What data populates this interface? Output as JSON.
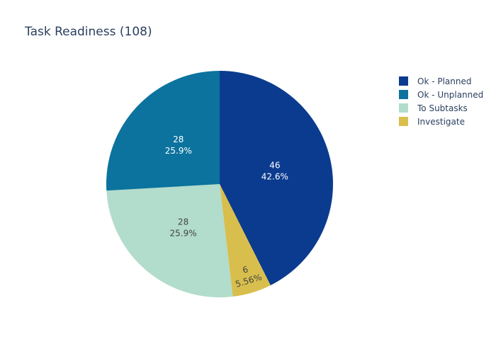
{
  "chart_data": {
    "type": "pie",
    "title": "Task Readiness (108)",
    "total": 108,
    "slices": [
      {
        "label": "Ok - Planned",
        "value": 46,
        "percent": "42.6%",
        "color": "#0b3b8f",
        "text_color": "#ffffff"
      },
      {
        "label": "Ok - Unplanned",
        "value": 28,
        "percent": "25.9%",
        "color": "#0b739e",
        "text_color": "#ffffff"
      },
      {
        "label": "To Subtasks",
        "value": 28,
        "percent": "25.9%",
        "color": "#b2dccb",
        "text_color": "#444444"
      },
      {
        "label": "Investigate",
        "value": 6,
        "percent": "5.56%",
        "color": "#d8be4c",
        "text_color": "#444444"
      }
    ],
    "legend_order": [
      0,
      1,
      2,
      3
    ],
    "legend_position": "top-right",
    "direction": "clockwise starting at 12 o'clock"
  }
}
